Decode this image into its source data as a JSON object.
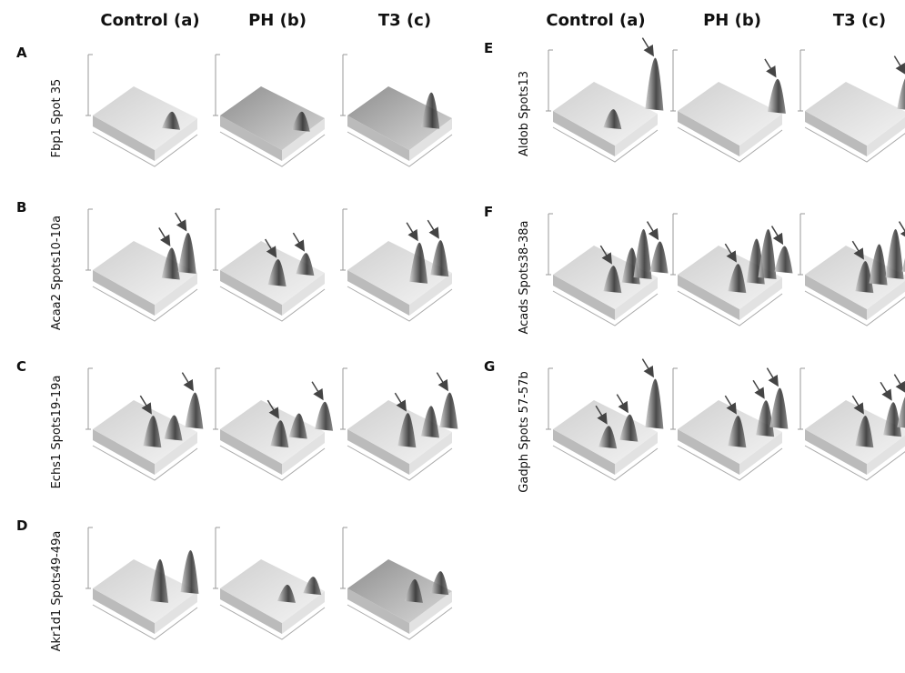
{
  "columns": {
    "left": [
      "Control (a)",
      "PH (b)",
      "T3 (c)"
    ],
    "right": [
      "Control (a)",
      "PH (b)",
      "T3 (c)"
    ]
  },
  "rows": [
    {
      "letter": "A",
      "label": "Fbp1 Spot 35"
    },
    {
      "letter": "B",
      "label": "Acaa2 Spots10-10a"
    },
    {
      "letter": "C",
      "label": "Echs1 Spots19-19a"
    },
    {
      "letter": "D",
      "label": "Akr1d1 Spots49-49a"
    },
    {
      "letter": "E",
      "label": "Aldob Spots13"
    },
    {
      "letter": "F",
      "label": "Acads Spots38-38a"
    },
    {
      "letter": "G",
      "label": "Gadph Spots 57-57b"
    }
  ]
}
